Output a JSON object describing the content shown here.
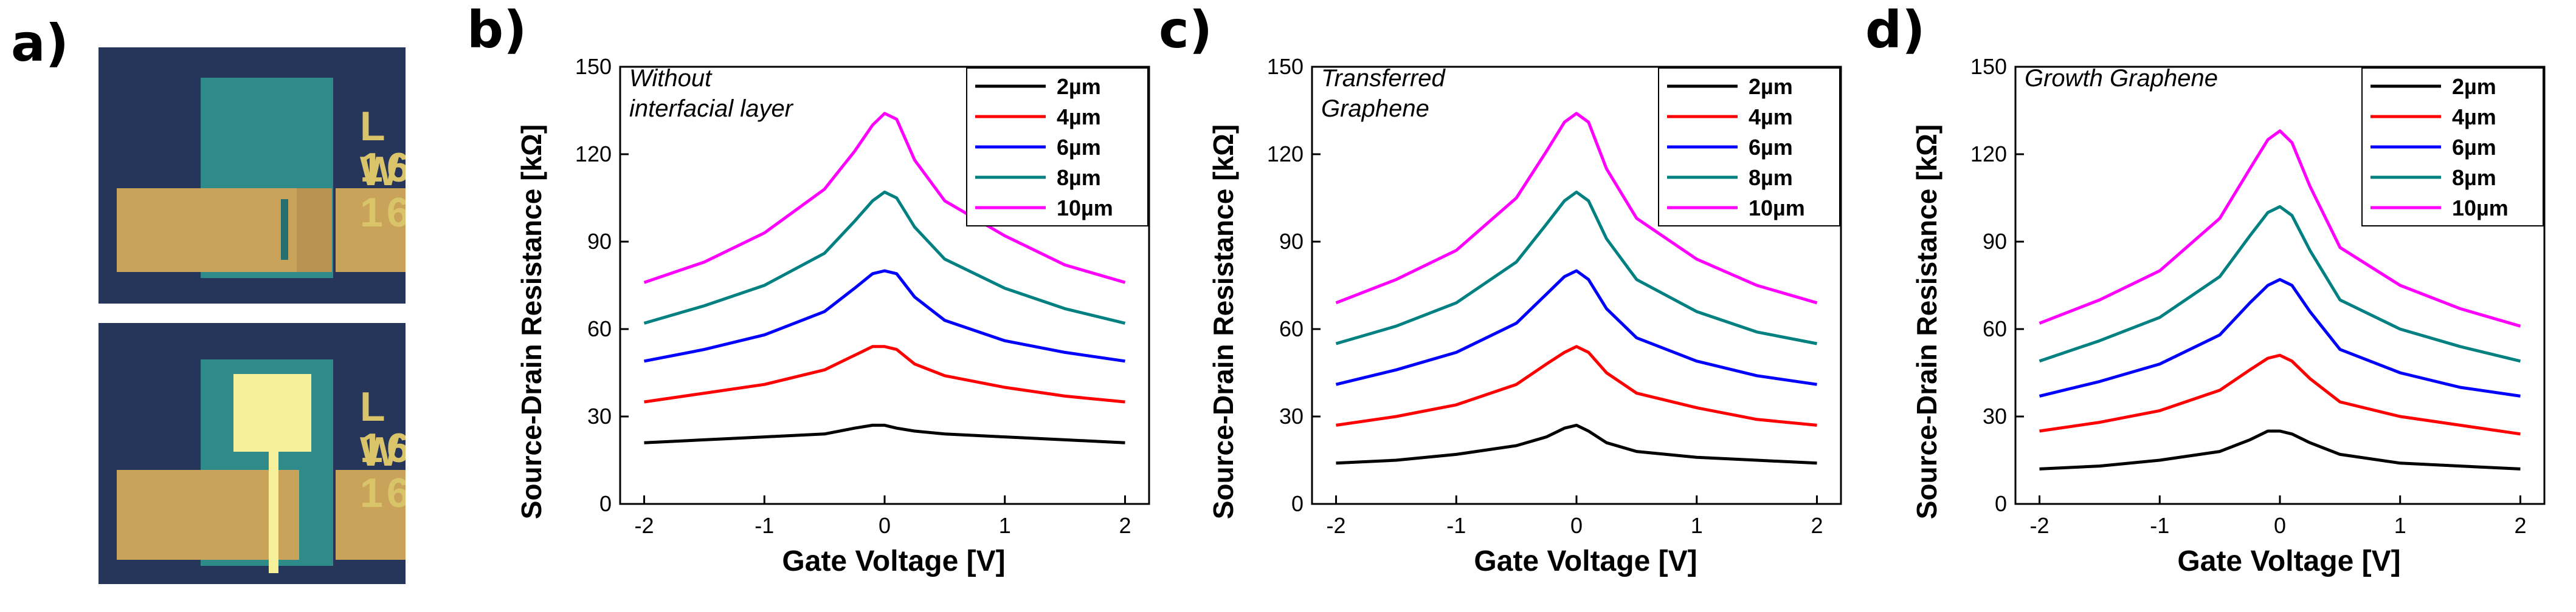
{
  "figure": {
    "panel_labels": {
      "a": "a)",
      "b": "b)",
      "c": "c)",
      "d": "d)"
    },
    "photo_label_L": "L 16",
    "photo_label_W": "W 16"
  },
  "colors": {
    "2um": "#000000",
    "4um": "#ff0000",
    "6um": "#0000ff",
    "8um": "#008080",
    "10um": "#ff00ff",
    "photo_bg": "#26355a",
    "gold": "#c9a35a",
    "cyan_layer": "#2f8a8a"
  },
  "chart_data": [
    {
      "type": "line",
      "panel": "b",
      "annotation": [
        "Without",
        "interfacial layer"
      ],
      "xlabel": "Gate Voltage [V]",
      "ylabel": "Source-Drain Resistance [kΩ]",
      "xlim": [
        -2.2,
        2.2
      ],
      "ylim": [
        0,
        150
      ],
      "xticks": [
        -2,
        -1,
        0,
        1,
        2
      ],
      "yticks": [
        0,
        30,
        60,
        90,
        120,
        150
      ],
      "legend_position": "top-right",
      "x": [
        -2,
        -1.5,
        -1,
        -0.5,
        -0.25,
        -0.1,
        0,
        0.1,
        0.25,
        0.5,
        1,
        1.5,
        2
      ],
      "series": [
        {
          "name": "2µm",
          "values": [
            21,
            22,
            23,
            24,
            26,
            27,
            27,
            26,
            25,
            24,
            23,
            22,
            21
          ]
        },
        {
          "name": "4µm",
          "values": [
            35,
            38,
            41,
            46,
            51,
            54,
            54,
            53,
            48,
            44,
            40,
            37,
            35
          ]
        },
        {
          "name": "6µm",
          "values": [
            49,
            53,
            58,
            66,
            74,
            79,
            80,
            79,
            71,
            63,
            56,
            52,
            49
          ]
        },
        {
          "name": "8µm",
          "values": [
            62,
            68,
            75,
            86,
            97,
            104,
            107,
            105,
            95,
            84,
            74,
            67,
            62
          ]
        },
        {
          "name": "10µm",
          "values": [
            76,
            83,
            93,
            108,
            121,
            130,
            134,
            132,
            118,
            104,
            92,
            82,
            76
          ]
        }
      ]
    },
    {
      "type": "line",
      "panel": "c",
      "annotation": [
        "Transferred",
        "Graphene"
      ],
      "xlabel": "Gate Voltage [V]",
      "ylabel": "Source-Drain Resistance [kΩ]",
      "xlim": [
        -2.2,
        2.2
      ],
      "ylim": [
        0,
        150
      ],
      "xticks": [
        -2,
        -1,
        0,
        1,
        2
      ],
      "yticks": [
        0,
        30,
        60,
        90,
        120,
        150
      ],
      "legend_position": "top-right",
      "x": [
        -2,
        -1.5,
        -1,
        -0.5,
        -0.25,
        -0.1,
        0,
        0.1,
        0.25,
        0.5,
        1,
        1.5,
        2
      ],
      "series": [
        {
          "name": "2µm",
          "values": [
            14,
            15,
            17,
            20,
            23,
            26,
            27,
            25,
            21,
            18,
            16,
            15,
            14
          ]
        },
        {
          "name": "4µm",
          "values": [
            27,
            30,
            34,
            41,
            48,
            52,
            54,
            52,
            45,
            38,
            33,
            29,
            27
          ]
        },
        {
          "name": "6µm",
          "values": [
            41,
            46,
            52,
            62,
            72,
            78,
            80,
            77,
            67,
            57,
            49,
            44,
            41
          ]
        },
        {
          "name": "8µm",
          "values": [
            55,
            61,
            69,
            83,
            96,
            104,
            107,
            104,
            91,
            77,
            66,
            59,
            55
          ]
        },
        {
          "name": "10µm",
          "values": [
            69,
            77,
            87,
            105,
            121,
            131,
            134,
            131,
            115,
            98,
            84,
            75,
            69
          ]
        }
      ]
    },
    {
      "type": "line",
      "panel": "d",
      "annotation": [
        "Growth Graphene"
      ],
      "xlabel": "Gate Voltage [V]",
      "ylabel": "Source-Drain Resistance [kΩ]",
      "xlim": [
        -2.2,
        2.2
      ],
      "ylim": [
        0,
        150
      ],
      "xticks": [
        -2,
        -1,
        0,
        1,
        2
      ],
      "yticks": [
        0,
        30,
        60,
        90,
        120,
        150
      ],
      "legend_position": "top-right",
      "x": [
        -2,
        -1.5,
        -1,
        -0.5,
        -0.25,
        -0.1,
        0,
        0.1,
        0.25,
        0.5,
        1,
        1.5,
        2
      ],
      "series": [
        {
          "name": "2µm",
          "values": [
            12,
            13,
            15,
            18,
            22,
            25,
            25,
            24,
            21,
            17,
            14,
            13,
            12
          ]
        },
        {
          "name": "4µm",
          "values": [
            25,
            28,
            32,
            39,
            46,
            50,
            51,
            49,
            43,
            35,
            30,
            27,
            24
          ]
        },
        {
          "name": "6µm",
          "values": [
            37,
            42,
            48,
            58,
            69,
            75,
            77,
            75,
            66,
            53,
            45,
            40,
            37
          ]
        },
        {
          "name": "8µm",
          "values": [
            49,
            56,
            64,
            78,
            92,
            100,
            102,
            99,
            87,
            70,
            60,
            54,
            49
          ]
        },
        {
          "name": "10µm",
          "values": [
            62,
            70,
            80,
            98,
            115,
            125,
            128,
            124,
            109,
            88,
            75,
            67,
            61
          ]
        }
      ]
    }
  ]
}
